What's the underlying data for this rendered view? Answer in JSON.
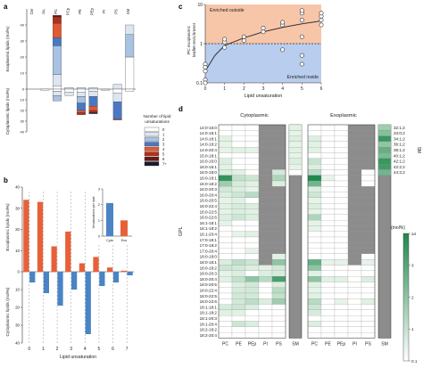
{
  "panels": {
    "a": "a",
    "b": "b",
    "c": "c",
    "d": "d"
  },
  "chart_data": [
    {
      "panel": "a",
      "type": "bar",
      "categories": [
        "Cer",
        "PA",
        "PC",
        "PCp",
        "PE",
        "PEp",
        "PI",
        "PS",
        "SM"
      ],
      "ylabel_top": "Exoplasmic lipids (mol%)",
      "ylabel_bottom": "Cytoplasmic lipids (mol%)",
      "ylim": [
        -40,
        50
      ],
      "yticks": [
        "40",
        "30",
        "20",
        "10",
        "0",
        "10",
        "20",
        "30",
        "40"
      ],
      "legend_title": "Number of lipid unsaturations",
      "legend": [
        {
          "label": "0",
          "color": "#ffffff"
        },
        {
          "label": "1",
          "color": "#dce6f2"
        },
        {
          "label": "2",
          "color": "#a9c2e2"
        },
        {
          "label": "3",
          "color": "#4a78c2"
        },
        {
          "label": "4",
          "color": "#e05a33"
        },
        {
          "label": "5",
          "color": "#b0301e"
        },
        {
          "label": "6",
          "color": "#6a1a12"
        },
        {
          "label": "7+",
          "color": "#1a1a2e"
        }
      ],
      "exoplasmic_stacks": [
        [],
        [],
        [
          {
            "k": 0,
            "v": 2
          },
          {
            "k": 1,
            "v": 7
          },
          {
            "k": 2,
            "v": 18
          },
          {
            "k": 3,
            "v": 5
          },
          {
            "k": 4,
            "v": 9
          },
          {
            "k": 5,
            "v": 4
          },
          {
            "k": 6,
            "v": 1
          }
        ],
        [
          {
            "k": 1,
            "v": 1
          }
        ],
        [
          {
            "k": 1,
            "v": 1
          }
        ],
        [
          {
            "k": 1,
            "v": 1
          }
        ],
        [],
        [
          {
            "k": 1,
            "v": 3
          }
        ],
        [
          {
            "k": 0,
            "v": 20
          },
          {
            "k": 2,
            "v": 14
          },
          {
            "k": 1,
            "v": 6
          }
        ]
      ],
      "cytoplasmic_stacks": [
        [],
        [
          {
            "k": 0,
            "v": 1
          }
        ],
        [
          {
            "k": 0,
            "v": 2
          },
          {
            "k": 1,
            "v": 4
          },
          {
            "k": 2,
            "v": 5
          }
        ],
        [
          {
            "k": 0,
            "v": 3
          },
          {
            "k": 1,
            "v": 3
          }
        ],
        [
          {
            "k": 0,
            "v": 3
          },
          {
            "k": 1,
            "v": 4
          },
          {
            "k": 2,
            "v": 6
          },
          {
            "k": 3,
            "v": 7
          },
          {
            "k": 4,
            "v": 2
          },
          {
            "k": 5,
            "v": 2
          }
        ],
        [
          {
            "k": 0,
            "v": 2
          },
          {
            "k": 1,
            "v": 5
          },
          {
            "k": 3,
            "v": 9
          },
          {
            "k": 4,
            "v": 4
          },
          {
            "k": 5,
            "v": 2
          },
          {
            "k": 7,
            "v": 1
          }
        ],
        [
          {
            "k": 1,
            "v": 1
          }
        ],
        [
          {
            "k": 0,
            "v": 4
          },
          {
            "k": 1,
            "v": 8
          },
          {
            "k": 3,
            "v": 16
          },
          {
            "k": 4,
            "v": 1
          }
        ],
        [
          {
            "k": 0,
            "v": 2
          }
        ]
      ]
    },
    {
      "panel": "b",
      "type": "bar",
      "categories": [
        "0",
        "1",
        "2",
        "3",
        "4",
        "5",
        "6",
        "7"
      ],
      "xlabel": "Lipid unsaturation",
      "ylabel_top": "Exoplasmic lipids (mol%)",
      "ylabel_bottom": "Cytoplasmic lipids (mol%)",
      "ylim": [
        -40,
        40
      ],
      "yticks": [
        "40",
        "30",
        "20",
        "10",
        "0",
        "10",
        "20",
        "30",
        "40"
      ],
      "series": [
        {
          "name": "Exo",
          "color": "#e8603a",
          "values": [
            34,
            33,
            12,
            19,
            4,
            7,
            2,
            0.5
          ]
        },
        {
          "name": "Cyto",
          "color": "#4a84c4",
          "values": [
            6,
            12,
            19,
            10,
            35,
            8,
            6,
            2
          ]
        }
      ],
      "inset": {
        "ylabel": "Unsaturations per lipid",
        "yticks": [
          "0",
          "1",
          "2",
          "3"
        ],
        "ylim": [
          0,
          3
        ],
        "categories": [
          "Cyto",
          "Exo"
        ],
        "values": [
          2.1,
          1.0
        ]
      }
    },
    {
      "panel": "c",
      "type": "scatter",
      "xlabel": "Lipid unsaturation",
      "ylabel": "PC exoplasmic leaflet enrichment",
      "xlim": [
        0,
        6
      ],
      "ylim_log": [
        0.1,
        10
      ],
      "xticks": [
        "0",
        "1",
        "2",
        "3",
        "4",
        "5",
        "6"
      ],
      "yticks": [
        "10",
        "1",
        "0.1"
      ],
      "region_top": "Enriched outside",
      "region_bottom": "Enriched inside",
      "points": [
        [
          0,
          0.3
        ],
        [
          0,
          0.25
        ],
        [
          0,
          0.2
        ],
        [
          0,
          0.12
        ],
        [
          0,
          0.1
        ],
        [
          1,
          0.8
        ],
        [
          1,
          1.1
        ],
        [
          1,
          1.3
        ],
        [
          2,
          1.2
        ],
        [
          2,
          1.5
        ],
        [
          3,
          2.0
        ],
        [
          3,
          2.5
        ],
        [
          4,
          0.7
        ],
        [
          4,
          3.0
        ],
        [
          4,
          3.5
        ],
        [
          5,
          0.3
        ],
        [
          5,
          0.5
        ],
        [
          5,
          1.5
        ],
        [
          5,
          6
        ],
        [
          5,
          7
        ],
        [
          5,
          4
        ],
        [
          6,
          3
        ],
        [
          6,
          4
        ],
        [
          6,
          5
        ],
        [
          6,
          6
        ]
      ],
      "fit": [
        [
          0,
          0.2
        ],
        [
          0.5,
          0.5
        ],
        [
          1,
          0.9
        ],
        [
          2,
          1.4
        ],
        [
          3,
          2.0
        ],
        [
          4,
          2.6
        ],
        [
          5,
          3.2
        ],
        [
          6,
          3.8
        ]
      ]
    },
    {
      "panel": "d",
      "type": "heatmap",
      "ylabel": "GPL",
      "ylabel_right": "SM",
      "left_title": "Cytoplasmic",
      "right_title": "Exoplasmic",
      "columns": [
        "PC",
        "PE",
        "PEp",
        "PI",
        "PS",
        "SM"
      ],
      "rows": [
        "14:0-16:0",
        "14:0-16:1",
        "14:0-18:1",
        "14:0-18:2",
        "14:0-20:4",
        "15:0-18:1",
        "16:0-16:0",
        "16:0-16:1",
        "16:0-18:0",
        "16:0-18:1",
        "16:0-18:2",
        "16:0-20:3",
        "16:0-20:4",
        "16:0-20:5",
        "16:0-22:4",
        "16:0-22:5",
        "16:0-22:6",
        "16:1-18:1",
        "16:1-18:2",
        "16:1-20:4",
        "17:0-18:1",
        "17:0-18:2",
        "17:0-20:4",
        "18:0-18:0",
        "18:0-18:1",
        "18:0-18:2",
        "18:0-20:3",
        "18:0-20:4",
        "18:0-20:5",
        "18:0-22:4",
        "18:0-22:5",
        "18:0-22:6",
        "18:1-18:1",
        "18:1-18:2",
        "18:1-20:3",
        "18:1-20:4",
        "18:2-18:2",
        "18:2-20:4"
      ],
      "sm_rows": [
        "32:1;2",
        "34:0;2",
        "34:1;2",
        "36:1;2",
        "38:1;2",
        "40:1;2",
        "42:1;2",
        "42:2;2",
        "44:2;2"
      ],
      "colorbar_title": "(mol%)",
      "colorbar_ticks": [
        "≥4",
        "3",
        "2",
        "1",
        "0.1"
      ],
      "cytoplasmic_values": [
        [
          0,
          0,
          0,
          -1,
          -1
        ],
        [
          0,
          0,
          0,
          -1,
          -1
        ],
        [
          0.2,
          0,
          0,
          -1,
          -1
        ],
        [
          0.1,
          0,
          0,
          -1,
          -1
        ],
        [
          0.1,
          0.2,
          0.1,
          -1,
          -1
        ],
        [
          0,
          0,
          0,
          -1,
          -1
        ],
        [
          0.3,
          0,
          0,
          -1,
          -1
        ],
        [
          0.2,
          0,
          0,
          -1,
          -1
        ],
        [
          0.3,
          0.2,
          0,
          -1,
          0.5
        ],
        [
          3.6,
          0.8,
          0.6,
          -1,
          1.2
        ],
        [
          1.5,
          0.4,
          0.2,
          -1,
          0.3
        ],
        [
          0.5,
          0.3,
          0.1,
          -1,
          -1
        ],
        [
          0.3,
          0.6,
          1.0,
          -1,
          -1
        ],
        [
          0.1,
          0.2,
          0,
          -1,
          -1
        ],
        [
          0.2,
          0.4,
          0.3,
          -1,
          -1
        ],
        [
          0.1,
          0.3,
          0.2,
          -1,
          -1
        ],
        [
          0.3,
          0.6,
          0.3,
          -1,
          -1
        ],
        [
          0.1,
          0,
          0,
          -1,
          -1
        ],
        [
          0,
          0,
          0,
          -1,
          -1
        ],
        [
          0,
          0.1,
          0.2,
          -1,
          -1
        ],
        [
          0,
          0,
          0,
          -1,
          -1
        ],
        [
          0,
          0,
          0,
          -1,
          -1
        ],
        [
          0,
          0,
          0.1,
          -1,
          -1
        ],
        [
          0,
          0,
          0,
          -1,
          0.2
        ],
        [
          0.3,
          0.9,
          0.6,
          -1,
          1.8
        ],
        [
          0.6,
          0.5,
          0.3,
          0.2,
          0.5
        ],
        [
          0.1,
          0.3,
          0,
          0.3,
          0.4
        ],
        [
          0.2,
          0.8,
          1.8,
          1.0,
          3.2
        ],
        [
          0,
          0.3,
          0.5,
          0,
          0.3
        ],
        [
          0,
          0.4,
          0.5,
          0,
          1.0
        ],
        [
          0,
          0.5,
          0.5,
          0,
          0.8
        ],
        [
          0,
          0.5,
          0.9,
          0.3,
          1.5
        ],
        [
          0.4,
          0.6,
          0.3,
          0,
          0
        ],
        [
          0.2,
          0.2,
          0,
          0,
          0
        ],
        [
          0,
          0,
          0,
          0,
          0
        ],
        [
          0,
          0.6,
          0.3,
          0,
          0
        ],
        [
          0,
          0,
          0,
          0,
          0
        ],
        [
          0,
          0,
          0,
          0,
          0
        ]
      ],
      "exoplasmic_values": [
        [
          0,
          0,
          0,
          -1,
          -1
        ],
        [
          0,
          0,
          0,
          -1,
          -1
        ],
        [
          0.3,
          0,
          0,
          -1,
          -1
        ],
        [
          0.2,
          0,
          0,
          -1,
          -1
        ],
        [
          0.2,
          0,
          0,
          -1,
          -1
        ],
        [
          0,
          0,
          0,
          -1,
          -1
        ],
        [
          0.7,
          0,
          0,
          -1,
          -1
        ],
        [
          0.3,
          0,
          0,
          -1,
          -1
        ],
        [
          0.9,
          0,
          0,
          -1,
          0
        ],
        [
          4.0,
          0.1,
          0,
          -1,
          0
        ],
        [
          2.4,
          0,
          0,
          -1,
          0
        ],
        [
          0.3,
          0,
          0,
          -1,
          -1
        ],
        [
          0.6,
          0,
          0,
          -1,
          -1
        ],
        [
          0.1,
          0,
          0,
          -1,
          -1
        ],
        [
          0.3,
          0,
          0,
          -1,
          -1
        ],
        [
          0.1,
          0,
          0,
          -1,
          -1
        ],
        [
          1.2,
          0,
          0,
          -1,
          -1
        ],
        [
          0.1,
          0,
          0,
          -1,
          -1
        ],
        [
          0.1,
          0,
          0,
          -1,
          -1
        ],
        [
          0,
          0,
          0,
          -1,
          -1
        ],
        [
          0,
          0,
          0,
          -1,
          -1
        ],
        [
          0,
          0,
          0,
          -1,
          -1
        ],
        [
          0,
          0,
          0,
          -1,
          -1
        ],
        [
          0,
          0,
          0,
          -1,
          0
        ],
        [
          2.6,
          0.1,
          0.1,
          -1,
          0.1
        ],
        [
          1.8,
          0,
          0,
          0,
          0
        ],
        [
          0.2,
          0,
          0,
          0,
          0
        ],
        [
          1.8,
          0.2,
          0.2,
          0,
          0.3
        ],
        [
          0.2,
          0,
          0,
          0,
          0
        ],
        [
          0.1,
          0,
          0,
          0,
          0
        ],
        [
          0.2,
          0,
          0,
          0,
          0
        ],
        [
          1.0,
          0,
          0.1,
          0,
          0.2
        ],
        [
          0.6,
          0,
          0,
          0,
          0
        ],
        [
          0.4,
          0,
          0,
          0,
          0
        ],
        [
          0,
          0,
          0,
          0,
          0
        ],
        [
          0.3,
          0,
          0,
          0,
          0
        ],
        [
          0,
          0,
          0,
          0,
          0
        ],
        [
          0,
          0,
          0,
          0,
          0
        ]
      ],
      "sm_cyto_values": [
        0.2,
        0.1,
        0.3,
        0.1,
        0.2,
        0.1,
        0.3,
        0.1,
        0
      ],
      "sm_exo_values": [
        1.5,
        2.0,
        3.5,
        1.8,
        2.6,
        2.2,
        3.5,
        3.3,
        2.4
      ]
    }
  ]
}
